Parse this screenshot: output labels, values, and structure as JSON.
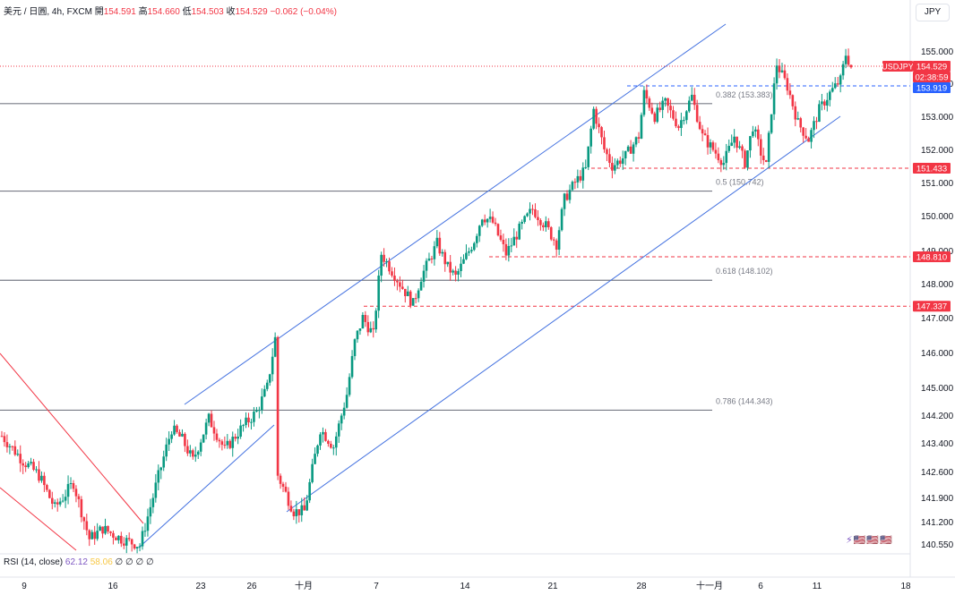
{
  "header": {
    "symbol": "美元 / 日圓, 4h, FXCM",
    "open_label": "開",
    "open": "154.591",
    "high_label": "高",
    "high": "154.660",
    "low_label": "低",
    "low": "154.503",
    "close_label": "收",
    "close": "154.529",
    "change": "−0.062 (−0.04%)"
  },
  "currency_button": "JPY",
  "rsi": {
    "label": "RSI (14, close)",
    "value1": "62.12",
    "value2": "58.06",
    "extras": "∅ ∅ ∅ ∅"
  },
  "colors": {
    "up": "#089981",
    "down": "#f23645",
    "channel": "#4472e0",
    "level": "#787b86",
    "marker_red": "#f23645",
    "marker_blue": "#2962ff"
  },
  "chart_data": {
    "type": "candlestick",
    "y_ticks": [
      "155.000",
      "154.000",
      "153.000",
      "152.000",
      "151.000",
      "150.000",
      "149.000",
      "148.000",
      "147.000",
      "146.000",
      "145.000",
      "144.200",
      "143.400",
      "142.600",
      "141.900",
      "141.200",
      "140.550"
    ],
    "x_ticks": [
      "9",
      "16",
      "23",
      "26",
      "十月",
      "7",
      "14",
      "21",
      "28",
      "十一月",
      "6",
      "11",
      "18"
    ],
    "price_labels": [
      {
        "text": "USDJPY",
        "price": 154.529,
        "color": "#f23645"
      },
      {
        "text": "154.529",
        "price": 154.529,
        "color": "#f23645"
      },
      {
        "text": "02:38:59",
        "price": 154.529,
        "color": "#f23645"
      },
      {
        "text": "153.919",
        "price": 153.919,
        "color": "#2962ff"
      },
      {
        "text": "151.433",
        "price": 151.433,
        "color": "#f23645"
      },
      {
        "text": "148.810",
        "price": 148.81,
        "color": "#f23645"
      },
      {
        "text": "147.337",
        "price": 147.337,
        "color": "#f23645"
      }
    ],
    "fib_levels": [
      {
        "label": "0.382 (153.383)",
        "price": 153.383
      },
      {
        "label": "0.5 (150.742)",
        "price": 150.742
      },
      {
        "label": "0.618 (148.102)",
        "price": 148.102
      },
      {
        "label": "0.786 (144.343)",
        "price": 144.343
      }
    ],
    "dashed_levels": [
      153.919,
      151.433,
      148.81,
      147.337
    ],
    "series": [
      {
        "anchors": [
          [
            0,
            143.6
          ],
          [
            8,
            142.9
          ],
          [
            14,
            142.5
          ],
          [
            20,
            141.6
          ],
          [
            27,
            142.3
          ],
          [
            33,
            140.7
          ],
          [
            38,
            141.0
          ],
          [
            45,
            140.7
          ],
          [
            52,
            140.5
          ],
          [
            58,
            142.2
          ],
          [
            64,
            143.8
          ],
          [
            68,
            143.5
          ],
          [
            72,
            142.9
          ],
          [
            78,
            144.1
          ],
          [
            84,
            143.2
          ],
          [
            90,
            143.8
          ],
          [
            96,
            144.3
          ],
          [
            100,
            145.0
          ],
          [
            103,
            146.4
          ],
          [
            104,
            142.5
          ],
          [
            110,
            141.5
          ],
          [
            114,
            141.5
          ],
          [
            120,
            143.8
          ],
          [
            125,
            143.3
          ],
          [
            130,
            144.8
          ],
          [
            133,
            146.3
          ],
          [
            136,
            147.0
          ],
          [
            140,
            146.5
          ],
          [
            143,
            148.9
          ],
          [
            150,
            148.0
          ],
          [
            155,
            147.4
          ],
          [
            158,
            148.2
          ],
          [
            164,
            149.2
          ],
          [
            168,
            148.5
          ],
          [
            171,
            148.2
          ],
          [
            178,
            149.3
          ],
          [
            181,
            150.0
          ],
          [
            185,
            149.8
          ],
          [
            190,
            148.9
          ],
          [
            195,
            149.6
          ],
          [
            200,
            150.2
          ],
          [
            205,
            149.7
          ],
          [
            209,
            149.2
          ],
          [
            212,
            150.5
          ],
          [
            216,
            151.0
          ],
          [
            220,
            151.4
          ],
          [
            223,
            153.2
          ],
          [
            227,
            152.0
          ],
          [
            230,
            151.5
          ],
          [
            235,
            151.8
          ],
          [
            240,
            152.4
          ],
          [
            242,
            153.7
          ],
          [
            246,
            153.0
          ],
          [
            250,
            153.4
          ],
          [
            255,
            152.7
          ],
          [
            260,
            153.6
          ],
          [
            264,
            152.4
          ],
          [
            268,
            152.0
          ],
          [
            272,
            151.6
          ],
          [
            276,
            152.4
          ],
          [
            280,
            151.6
          ],
          [
            283,
            152.7
          ],
          [
            286,
            151.9
          ],
          [
            288,
            151.5
          ],
          [
            290,
            153.2
          ],
          [
            292,
            154.6
          ],
          [
            296,
            153.9
          ],
          [
            300,
            152.8
          ],
          [
            304,
            152.3
          ],
          [
            308,
            153.2
          ],
          [
            312,
            153.7
          ],
          [
            316,
            154.1
          ],
          [
            318,
            154.9
          ],
          [
            320,
            154.5
          ]
        ]
      }
    ]
  }
}
